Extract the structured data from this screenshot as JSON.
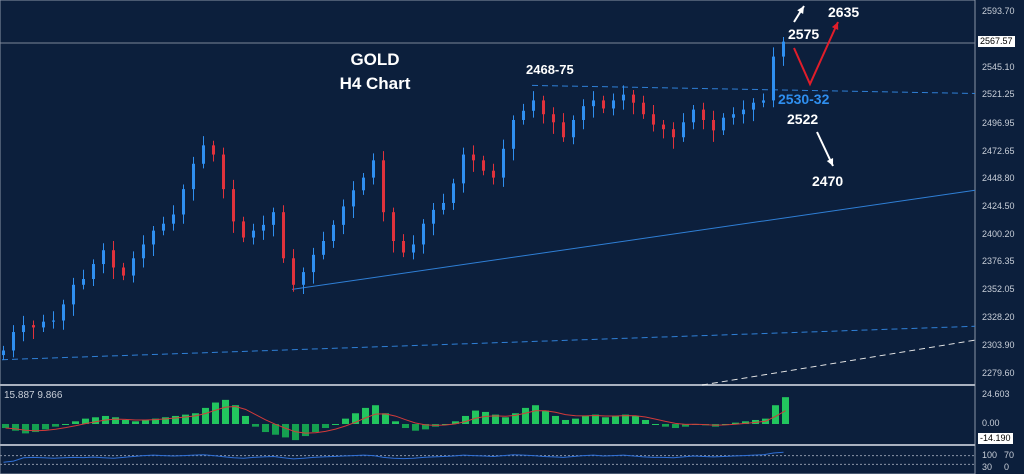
{
  "chart_data": {
    "type": "candlestick",
    "title": "GOLD",
    "subtitle": "H4 Chart",
    "ylim": [
      2267.5,
      2605.0
    ],
    "price_ticks": [
      "2593.70",
      "2545.10",
      "2521.25",
      "2496.95",
      "2472.65",
      "2448.80",
      "2424.50",
      "2400.20",
      "2376.35",
      "2352.05",
      "2328.20",
      "2303.90",
      "2279.60"
    ],
    "current_price": "2567.57",
    "closes": [
      2300,
      2316,
      2322,
      2320,
      2325,
      2326,
      2340,
      2357,
      2362,
      2375,
      2387,
      2372,
      2365,
      2380,
      2392,
      2404,
      2410,
      2418,
      2440,
      2462,
      2478,
      2470,
      2440,
      2412,
      2398,
      2404,
      2409,
      2420,
      2380,
      2357,
      2368,
      2383,
      2395,
      2409,
      2425,
      2439,
      2450,
      2465,
      2420,
      2395,
      2385,
      2392,
      2410,
      2422,
      2428,
      2445,
      2470,
      2465,
      2456,
      2450,
      2475,
      2500,
      2508,
      2517,
      2505,
      2498,
      2485,
      2500,
      2512,
      2517,
      2510,
      2517,
      2522,
      2515,
      2505,
      2496,
      2492,
      2485,
      2498,
      2509,
      2500,
      2491,
      2502,
      2505,
      2509,
      2515,
      2517,
      2555,
      2568
    ],
    "trendlines": [
      {
        "style": "dashed",
        "color": "#2f7fd6",
        "from": [
          53,
          2530
        ],
        "to": [
          102,
          2523
        ]
      },
      {
        "style": "solid",
        "color": "#2f7fd6",
        "from": [
          29,
          2353
        ],
        "to": [
          97,
          2439
        ]
      },
      {
        "style": "dashed",
        "color": "#2f7fd6",
        "from": [
          0,
          2292
        ],
        "to": [
          97,
          2321
        ]
      },
      {
        "style": "dashed",
        "color": "#e8e8e8",
        "from": [
          70,
          2270
        ],
        "to": [
          97,
          2309
        ]
      }
    ],
    "annotations": {
      "resistance_label": "2468-75",
      "target_up_1": "2575",
      "target_up_2": "2635",
      "support_zone": "2530-32",
      "support_2": "2522",
      "target_down": "2470"
    },
    "indicator": {
      "label": "15.887 9.866",
      "ticks": [
        "24.603",
        "0.00",
        "-14.190"
      ],
      "ylim": [
        -16,
        26
      ],
      "histogram": [
        -3,
        -5,
        -7,
        -6,
        -4,
        -2,
        0,
        2,
        4,
        5,
        6,
        5,
        3,
        2,
        3,
        4,
        5,
        6,
        7,
        8,
        12,
        16,
        18,
        14,
        6,
        -2,
        -6,
        -8,
        -10,
        -12,
        -9,
        -6,
        -3,
        0,
        4,
        8,
        12,
        14,
        8,
        2,
        -3,
        -5,
        -4,
        -2,
        0,
        2,
        6,
        10,
        9,
        7,
        5,
        8,
        12,
        14,
        10,
        6,
        3,
        4,
        6,
        7,
        5,
        6,
        7,
        6,
        3,
        0,
        -2,
        -3,
        -2,
        0,
        -1,
        -2,
        0,
        1,
        2,
        3,
        4,
        14,
        20
      ],
      "pos_color": "#22c55e",
      "signal_color": "#d23a3a"
    },
    "oscillator": {
      "ticks": [
        "100",
        "70",
        "30",
        "0"
      ],
      "values": [
        40,
        45,
        60,
        62,
        60,
        58,
        60,
        62,
        61,
        63,
        60,
        58,
        62,
        66,
        70,
        72,
        70,
        68,
        70,
        72,
        74,
        70,
        65,
        60,
        58,
        62,
        64,
        66,
        60,
        55,
        58,
        62,
        64,
        66,
        68,
        70,
        72,
        70,
        62,
        58,
        56,
        58,
        62,
        64,
        66,
        68,
        72,
        70,
        68,
        66,
        70,
        74,
        72,
        70,
        66,
        64,
        62,
        66,
        70,
        72,
        68,
        70,
        72,
        68,
        64,
        62,
        62,
        60,
        64,
        68,
        66,
        64,
        66,
        68,
        70,
        72,
        74,
        82,
        85
      ],
      "color": "#2f6fd6"
    },
    "colors": {
      "bull": "#2f8ff0",
      "bear": "#e0323c",
      "background": "#0c1f3c",
      "arrow_red": "#e11d2a",
      "support_text": "#2f8ff0"
    }
  }
}
